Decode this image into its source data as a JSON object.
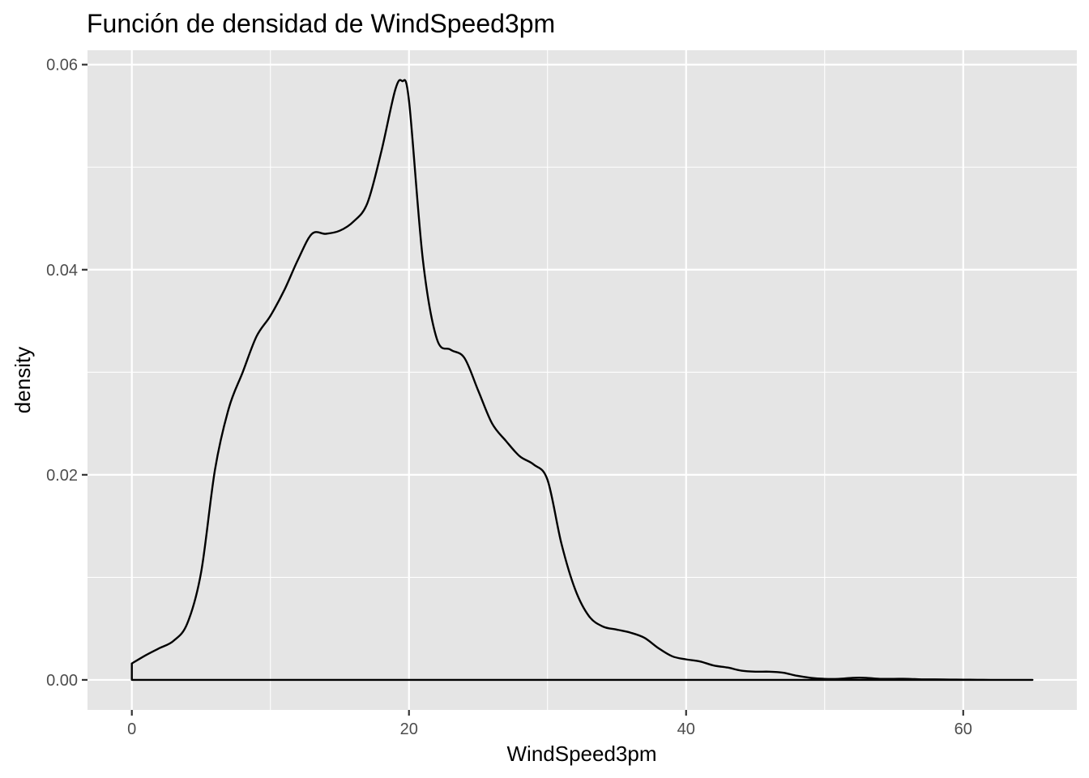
{
  "chart_data": {
    "type": "area",
    "title": "Función de densidad de WindSpeed3pm",
    "xlabel": "WindSpeed3pm",
    "ylabel": "density",
    "xlim": [
      -3.2,
      68.2
    ],
    "ylim": [
      -0.00293,
      0.0614
    ],
    "x_ticks": [
      {
        "value": 0,
        "label": "0"
      },
      {
        "value": 20,
        "label": "20"
      },
      {
        "value": 40,
        "label": "40"
      },
      {
        "value": 60,
        "label": "60"
      }
    ],
    "y_ticks": [
      {
        "value": 0.0,
        "label": "0.00"
      },
      {
        "value": 0.02,
        "label": "0.02"
      },
      {
        "value": 0.04,
        "label": "0.04"
      },
      {
        "value": 0.06,
        "label": "0.06"
      }
    ],
    "x_minor": [
      10,
      30,
      50
    ],
    "y_minor": [
      0.01,
      0.03,
      0.05
    ],
    "grid": true,
    "background": "#e5e5e5",
    "grid_color": "#ffffff",
    "line_color": "#000000",
    "series": [
      {
        "x": [
          0,
          1,
          2,
          3,
          4,
          5,
          6,
          7,
          8,
          9,
          10,
          11,
          12,
          13,
          14,
          15,
          16,
          17,
          18,
          19,
          19.5,
          20,
          21,
          22,
          23,
          24,
          25,
          26,
          27,
          28,
          29,
          30,
          31,
          32,
          33,
          34,
          35,
          36,
          37,
          38,
          39,
          40,
          41,
          42,
          43,
          44,
          45,
          46,
          47,
          48,
          49,
          50,
          51,
          52,
          53,
          54,
          55,
          56,
          57,
          58,
          59,
          60,
          61,
          62,
          63,
          64,
          65
        ],
        "values": [
          0.0016,
          0.0024,
          0.0031,
          0.0038,
          0.0055,
          0.0105,
          0.0205,
          0.0265,
          0.03,
          0.0335,
          0.0355,
          0.038,
          0.041,
          0.0435,
          0.0435,
          0.0438,
          0.0447,
          0.0465,
          0.0515,
          0.0575,
          0.0584,
          0.0565,
          0.041,
          0.0333,
          0.0322,
          0.0314,
          0.0282,
          0.025,
          0.0233,
          0.0218,
          0.021,
          0.0195,
          0.0133,
          0.0088,
          0.0062,
          0.0052,
          0.0049,
          0.0046,
          0.0041,
          0.0031,
          0.0023,
          0.002,
          0.0018,
          0.0014,
          0.0012,
          0.0009,
          0.0008,
          0.0008,
          0.0007,
          0.0004,
          0.0002,
          0.0001,
          0.0001,
          0.0002,
          0.0002,
          0.0001,
          0.0001,
          0.0001,
          5e-05,
          5e-05,
          3e-05,
          2e-05,
          1e-05,
          0.0,
          0.0,
          0.0,
          0.0
        ]
      }
    ]
  }
}
